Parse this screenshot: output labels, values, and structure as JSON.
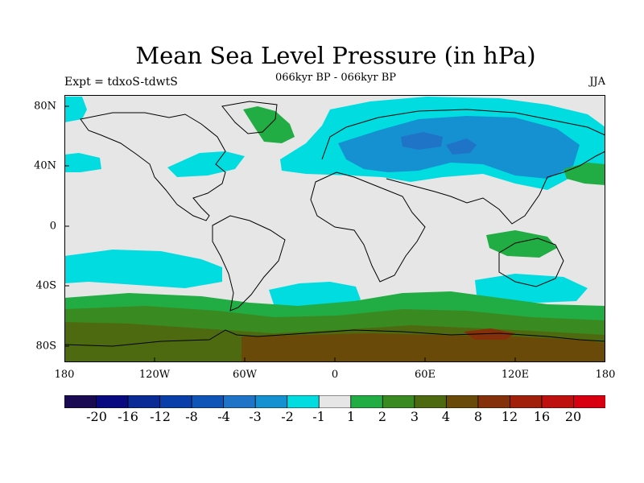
{
  "title": "Mean Sea Level Pressure (in hPa)",
  "subtitle": "066kyr BP - 066kyr BP",
  "left_label": "Expt = tdxoS-tdwtS",
  "right_label": "JJA",
  "x_ticks": [
    "180",
    "120W",
    "60W",
    "0",
    "60E",
    "120E",
    "180"
  ],
  "y_ticks": [
    "80N",
    "40N",
    "0",
    "40S",
    "80S"
  ],
  "colorbar": {
    "colors": [
      "#1a0a54",
      "#0a0a80",
      "#0a2a96",
      "#0a3ea8",
      "#0f55b8",
      "#1f74c8",
      "#1590d0",
      "#00dce0",
      "#e6e6e6",
      "#22ac44",
      "#3a8a22",
      "#4e6a10",
      "#6a4a08",
      "#84300a",
      "#a0200c",
      "#be100e",
      "#d80010"
    ],
    "labels": [
      "-20",
      "-16",
      "-12",
      "-8",
      "-4",
      "-3",
      "-2",
      "-1",
      "1",
      "2",
      "3",
      "4",
      "8",
      "12",
      "16",
      "20"
    ]
  },
  "legend_colors": {
    "neutral": "#e6e6e6",
    "neg1": "#00dce0",
    "neg2": "#1590d0",
    "neg3": "#1f74c8",
    "pos1": "#22ac44",
    "pos2": "#3a8a22",
    "pos3": "#4e6a10",
    "pos4": "#6a4a08",
    "pos5": "#84300a"
  }
}
